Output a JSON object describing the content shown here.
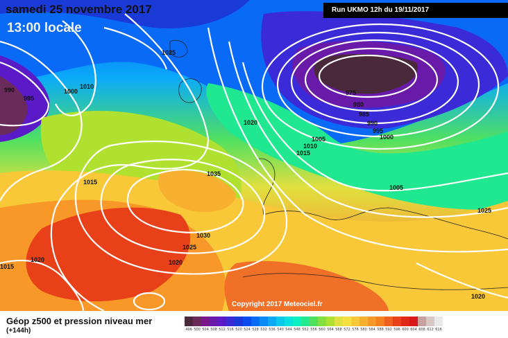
{
  "header": {
    "date": "samedi 25 novembre 2017",
    "time": "13:00 locale",
    "run": "Run UKMO 12h du 19/11/2017"
  },
  "legend": {
    "title": "Géop z500 et pression niveau mer",
    "subtitle": "(+144h)",
    "ticks": [
      "496",
      "500",
      "504",
      "508",
      "512",
      "516",
      "520",
      "524",
      "528",
      "532",
      "536",
      "540",
      "544",
      "548",
      "552",
      "556",
      "560",
      "564",
      "568",
      "572",
      "576",
      "580",
      "584",
      "588",
      "592",
      "596",
      "600",
      "604",
      "608",
      "612",
      "616"
    ],
    "colors": [
      "#4a2a3a",
      "#6a2a5a",
      "#7a1a8a",
      "#6a1aa8",
      "#5a1ac8",
      "#3a2ad8",
      "#1a3ad8",
      "#0a4af0",
      "#0a6af8",
      "#0a8afa",
      "#0aaafa",
      "#0acaf0",
      "#0ae0e0",
      "#0af0c0",
      "#20e890",
      "#50e060",
      "#80e040",
      "#b0e030",
      "#e0e040",
      "#f8e040",
      "#f8c838",
      "#f8b030",
      "#f89828",
      "#f88020",
      "#f06020",
      "#e84018",
      "#e02818",
      "#d81818",
      "#c8a0a0",
      "#d8c8c8",
      "#e8e8e8"
    ]
  },
  "map_labels": [
    {
      "id": "isobar-1025-a",
      "text": "1025"
    },
    {
      "id": "isobar-990",
      "text": "990"
    },
    {
      "id": "isobar-995-w",
      "text": "995"
    },
    {
      "id": "isobar-1000-w",
      "text": "1000"
    },
    {
      "id": "isobar-1010-w",
      "text": "1010"
    },
    {
      "id": "isobar-975",
      "text": "975"
    },
    {
      "id": "isobar-980",
      "text": "980"
    },
    {
      "id": "isobar-985",
      "text": "985"
    },
    {
      "id": "isobar-990-e",
      "text": "990"
    },
    {
      "id": "isobar-995-e",
      "text": "995"
    },
    {
      "id": "isobar-1000-e",
      "text": "1000"
    },
    {
      "id": "isobar-1005",
      "text": "1005"
    },
    {
      "id": "isobar-1010",
      "text": "1010"
    },
    {
      "id": "isobar-1015",
      "text": "1015"
    },
    {
      "id": "isobar-1020",
      "text": "1020"
    },
    {
      "id": "isobar-1035",
      "text": "1035"
    },
    {
      "id": "isobar-1015-w",
      "text": "1015"
    },
    {
      "id": "isobar-1030",
      "text": "1030"
    },
    {
      "id": "isobar-1025-b",
      "text": "1025"
    },
    {
      "id": "isobar-1020-b",
      "text": "1020"
    },
    {
      "id": "isobar-1020-c",
      "text": "1020"
    },
    {
      "id": "isobar-1015-sw",
      "text": "1015"
    },
    {
      "id": "isobar-1005-e",
      "text": "1005"
    },
    {
      "id": "isobar-1025-e",
      "text": "1025"
    },
    {
      "id": "isobar-1020-se",
      "text": "1020"
    }
  ],
  "copyright": "Copyright 2017 Meteociel.fr"
}
